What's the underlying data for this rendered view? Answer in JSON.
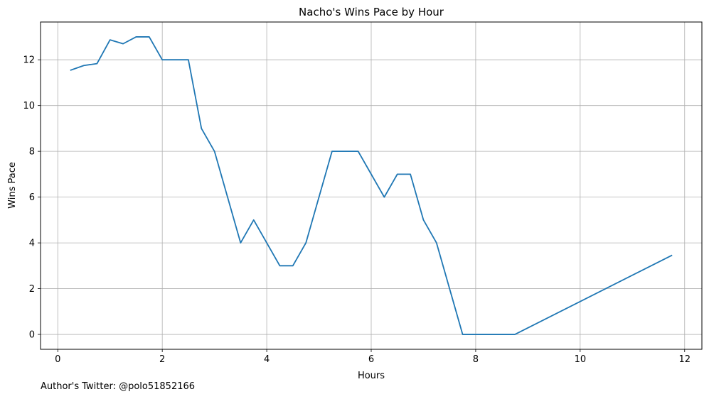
{
  "chart_data": {
    "type": "line",
    "title": "Nacho's Wins Pace by Hour",
    "xlabel": "Hours",
    "ylabel": "Wins Pace",
    "xlim": [
      -0.33,
      12.33
    ],
    "ylim": [
      -0.65,
      13.65
    ],
    "xticks": [
      0,
      2,
      4,
      6,
      8,
      10,
      12
    ],
    "yticks": [
      0,
      2,
      4,
      6,
      8,
      10,
      12
    ],
    "grid": true,
    "series": [
      {
        "color": "#1f77b4",
        "x": [
          0.25,
          0.5,
          0.75,
          1.0,
          1.25,
          1.5,
          1.75,
          2.0,
          2.25,
          2.5,
          2.75,
          3.0,
          3.25,
          3.5,
          3.75,
          4.0,
          4.25,
          4.5,
          4.75,
          5.0,
          5.25,
          5.5,
          5.75,
          6.0,
          6.25,
          6.5,
          6.75,
          7.0,
          7.25,
          7.5,
          7.75,
          8.0,
          8.25,
          8.5,
          8.75,
          11.75
        ],
        "y": [
          11.55,
          11.75,
          11.83,
          12.87,
          12.7,
          13.0,
          13.0,
          12.0,
          12.0,
          12.0,
          9.0,
          8.0,
          6.0,
          4.0,
          5.0,
          4.0,
          3.0,
          3.0,
          4.0,
          6.0,
          8.0,
          8.0,
          8.0,
          7.0,
          6.0,
          7.0,
          7.0,
          5.0,
          4.0,
          2.0,
          0.0,
          0.0,
          0.0,
          0.0,
          0.0,
          3.45
        ]
      }
    ]
  },
  "footnote": "Author's Twitter: @polo51852166"
}
